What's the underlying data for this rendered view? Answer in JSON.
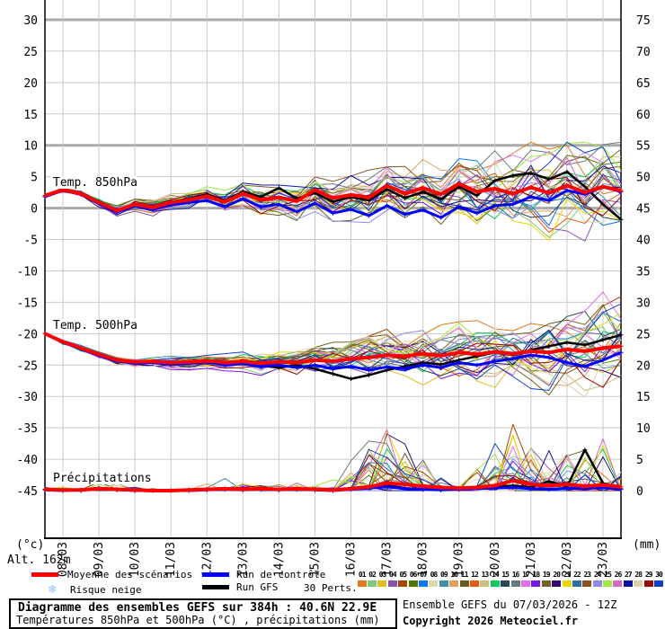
{
  "meta": {
    "title": "Diagramme des ensembles GEFS sur 384h : 40.6N 22.9E",
    "subtitle": "Températures 850hPa et 500hPa (°C) , précipitations (mm)",
    "run_info": "Ensemble GEFS du 07/03/2026 - 12Z",
    "copyright": "Copyright 2026 Meteociel.fr",
    "altitude": "Alt. 162m",
    "unit_left": "(°c)",
    "unit_right": "(mm)"
  },
  "legend": {
    "mean_label": "Moyenne des scénarios",
    "control_label": "Run de contrôle",
    "gfs_label": "Run GFS",
    "perts_label": "30 Perts.",
    "snow_label": "Risque neige",
    "snow_icon": "❄"
  },
  "perts": {
    "numbers": [
      "01",
      "02",
      "03",
      "04",
      "05",
      "06",
      "07",
      "08",
      "09",
      "10",
      "11",
      "12",
      "13",
      "14",
      "15",
      "16",
      "17",
      "18",
      "19",
      "20",
      "21",
      "22",
      "23",
      "24",
      "25",
      "26",
      "27",
      "28",
      "29",
      "30"
    ]
  },
  "chart_data": {
    "type": "line",
    "x_hours_step": 12,
    "x_hours_max": 384,
    "x_dates": [
      "08/03",
      "09/03",
      "10/03",
      "11/03",
      "12/03",
      "13/03",
      "14/03",
      "15/03",
      "16/03",
      "17/03",
      "18/03",
      "19/03",
      "20/03",
      "21/03",
      "22/03",
      "23/03"
    ],
    "yticks_left": [
      30,
      25,
      20,
      15,
      10,
      5,
      0,
      -5,
      -10,
      -15,
      -20,
      -25,
      -30,
      -35,
      -40,
      -45
    ],
    "yticks_right": [
      75,
      70,
      65,
      60,
      55,
      50,
      45,
      40,
      35,
      30,
      25,
      20,
      15,
      10,
      5,
      0
    ],
    "emphasized_left_ticks": [
      30,
      10,
      0
    ],
    "n_members": 30,
    "member_colors": [
      "#e07820",
      "#7fc97f",
      "#dfc020",
      "#8855aa",
      "#a84800",
      "#507800",
      "#0878f0",
      "#dfd8a8",
      "#3e8ea8",
      "#e0a060",
      "#6b5a20",
      "#e85810",
      "#cfc080",
      "#10c860",
      "#28485a",
      "#687880",
      "#e070e8",
      "#7818e8",
      "#756324",
      "#2f0870",
      "#e8d800",
      "#2870a8",
      "#8a5020",
      "#8c8ce8",
      "#a0e840",
      "#d868c8",
      "#1010a0",
      "#dfd0a8",
      "#980808",
      "#1040c8"
    ],
    "series_colors": {
      "mean": "#ff0000",
      "control": "#0000ff",
      "gfs": "#000000"
    },
    "bands": [
      {
        "id": "t850",
        "label": "Temp. 850hPa",
        "unit": "°C",
        "range": [
          -7.5,
          10.5
        ],
        "mean": [
          2.0,
          2.9,
          2.3,
          0.9,
          -0.4,
          0.6,
          0.1,
          0.9,
          1.3,
          1.9,
          1.0,
          2.3,
          1.3,
          1.7,
          1.1,
          2.9,
          1.6,
          2.1,
          1.7,
          3.6,
          2.3,
          3.2,
          2.2,
          3.9,
          2.6,
          3.1,
          2.3,
          3.3,
          2.4,
          3.6,
          2.5,
          3.4,
          2.8
        ],
        "control": [
          1.8,
          2.8,
          2.2,
          0.7,
          -0.6,
          0.4,
          -0.2,
          0.5,
          0.9,
          1.2,
          0.2,
          1.5,
          0.2,
          0.6,
          -0.6,
          0.8,
          -0.8,
          -0.2,
          -1.2,
          0.4,
          -1.0,
          -0.3,
          -1.5,
          0.2,
          -0.8,
          0.4,
          0.6,
          1.8,
          1.2,
          2.8,
          2.2,
          3.4,
          2.6
        ],
        "gfs": [
          2.0,
          3.0,
          2.4,
          1.0,
          -0.3,
          0.7,
          0.2,
          1.0,
          1.5,
          2.2,
          1.2,
          2.6,
          1.8,
          3.2,
          1.5,
          2.4,
          1.0,
          1.8,
          1.2,
          3.0,
          1.6,
          2.6,
          1.4,
          3.4,
          2.0,
          4.4,
          5.2,
          5.6,
          4.6,
          5.8,
          3.4,
          0.6,
          -1.8
        ],
        "spread_lo": [
          0.3,
          0.4,
          0.5,
          0.7,
          0.9,
          1.0,
          1.1,
          1.2,
          1.4,
          1.6,
          1.8,
          2.0,
          2.2,
          2.5,
          2.8,
          3.0,
          3.2,
          3.5,
          3.8,
          4.0,
          4.2,
          4.5,
          4.8,
          5.0,
          5.2,
          5.5,
          5.8,
          6.0,
          6.2,
          6.5,
          6.8,
          7.0,
          7.2
        ],
        "spread_hi": [
          0.3,
          0.4,
          0.5,
          0.7,
          0.9,
          1.0,
          1.1,
          1.2,
          1.4,
          1.6,
          1.8,
          2.0,
          2.2,
          2.4,
          2.6,
          2.8,
          3.0,
          3.3,
          3.6,
          4.0,
          4.3,
          4.6,
          4.9,
          5.2,
          5.5,
          5.8,
          6.0,
          6.2,
          6.4,
          6.6,
          6.8,
          7.0,
          7.2
        ]
      },
      {
        "id": "t500",
        "label": "Temp. 500hPa",
        "unit": "°C",
        "range": [
          -31.5,
          -13.0
        ],
        "mean": [
          -20.0,
          -21.3,
          -22.3,
          -23.3,
          -24.2,
          -24.5,
          -24.4,
          -24.6,
          -24.5,
          -24.3,
          -24.6,
          -24.4,
          -24.7,
          -24.5,
          -24.6,
          -24.2,
          -24.4,
          -24.0,
          -23.8,
          -23.4,
          -23.6,
          -23.2,
          -23.5,
          -23.0,
          -23.3,
          -22.9,
          -23.2,
          -22.8,
          -23.0,
          -22.5,
          -22.8,
          -22.3,
          -22.0
        ],
        "control": [
          -20.0,
          -21.4,
          -22.4,
          -23.5,
          -24.4,
          -24.7,
          -24.6,
          -24.9,
          -24.7,
          -24.5,
          -25.0,
          -24.8,
          -25.2,
          -25.0,
          -25.4,
          -25.0,
          -25.6,
          -25.2,
          -25.8,
          -25.3,
          -25.6,
          -25.0,
          -25.4,
          -24.6,
          -25.0,
          -24.4,
          -24.0,
          -23.4,
          -23.8,
          -24.6,
          -25.2,
          -24.2,
          -23.0
        ],
        "gfs": [
          -20.0,
          -21.3,
          -22.4,
          -23.4,
          -24.3,
          -24.6,
          -24.5,
          -24.8,
          -24.6,
          -24.5,
          -24.9,
          -24.7,
          -25.1,
          -25.4,
          -25.0,
          -25.6,
          -26.4,
          -27.2,
          -26.6,
          -25.8,
          -25.2,
          -24.6,
          -24.9,
          -24.2,
          -23.6,
          -23.0,
          -23.4,
          -22.6,
          -22.0,
          -21.4,
          -21.8,
          -21.0,
          -20.2
        ],
        "spread_lo": [
          0.2,
          0.3,
          0.4,
          0.5,
          0.6,
          0.7,
          0.8,
          0.9,
          1.0,
          1.1,
          1.2,
          1.4,
          1.6,
          1.9,
          2.2,
          2.6,
          3.0,
          3.4,
          3.8,
          4.2,
          4.5,
          4.8,
          5.0,
          5.2,
          5.4,
          5.5,
          5.6,
          5.7,
          5.8,
          5.9,
          6.0,
          6.1,
          6.2
        ],
        "spread_hi": [
          0.2,
          0.3,
          0.4,
          0.5,
          0.6,
          0.7,
          0.8,
          0.9,
          1.0,
          1.1,
          1.2,
          1.3,
          1.5,
          1.7,
          2.0,
          2.3,
          2.6,
          2.9,
          3.2,
          3.5,
          3.8,
          4.0,
          4.2,
          4.4,
          4.6,
          4.8,
          5.0,
          5.5,
          6.0,
          6.5,
          7.0,
          7.5,
          8.0
        ]
      },
      {
        "id": "precip",
        "label": "Précipitations",
        "unit": "mm",
        "range": [
          0,
          15.5
        ],
        "mean": [
          0.2,
          0.1,
          0.1,
          0.3,
          0.2,
          0.1,
          0,
          0,
          0.1,
          0.2,
          0.3,
          0.2,
          0.3,
          0.2,
          0.3,
          0.2,
          0.1,
          0.3,
          0.6,
          1.2,
          1.0,
          0.7,
          0.5,
          0.4,
          0.5,
          0.8,
          1.6,
          1.0,
          0.8,
          1.0,
          0.7,
          0.9,
          0.6
        ],
        "control": [
          0.1,
          0,
          0.1,
          0.4,
          0.2,
          0,
          0,
          0,
          0,
          0.1,
          0.2,
          0.1,
          0.2,
          0.1,
          0.2,
          0.1,
          0,
          0.2,
          0.4,
          0.6,
          0.3,
          0.2,
          0.1,
          0.2,
          0.3,
          0.4,
          0.5,
          0.3,
          0.2,
          0.4,
          0.3,
          0.5,
          0.2
        ],
        "gfs": [
          0.2,
          0.1,
          0,
          0.3,
          0.1,
          0,
          0,
          0,
          0.1,
          0.2,
          0.3,
          0.2,
          0.3,
          0.1,
          0.2,
          0.1,
          0,
          0.3,
          0.5,
          0.8,
          0.4,
          0.2,
          0.1,
          0.3,
          0.5,
          0.6,
          0.8,
          0.5,
          1.5,
          0.6,
          6.5,
          1.2,
          0.3
        ],
        "spike_prob": [
          0.05,
          0.05,
          0.05,
          0.1,
          0.1,
          0.05,
          0.02,
          0.02,
          0.05,
          0.1,
          0.12,
          0.1,
          0.12,
          0.1,
          0.12,
          0.1,
          0.08,
          0.2,
          0.3,
          0.35,
          0.3,
          0.25,
          0.2,
          0.15,
          0.2,
          0.25,
          0.35,
          0.3,
          0.3,
          0.3,
          0.3,
          0.3,
          0.25
        ],
        "spike_amp": [
          1,
          1,
          1,
          2,
          2,
          1,
          0.5,
          0.5,
          1,
          2,
          2,
          2,
          2,
          2,
          2,
          2,
          2,
          6,
          12,
          13,
          10,
          8,
          5,
          4,
          8,
          10,
          12,
          9,
          8,
          10,
          9,
          12,
          8
        ]
      }
    ]
  }
}
